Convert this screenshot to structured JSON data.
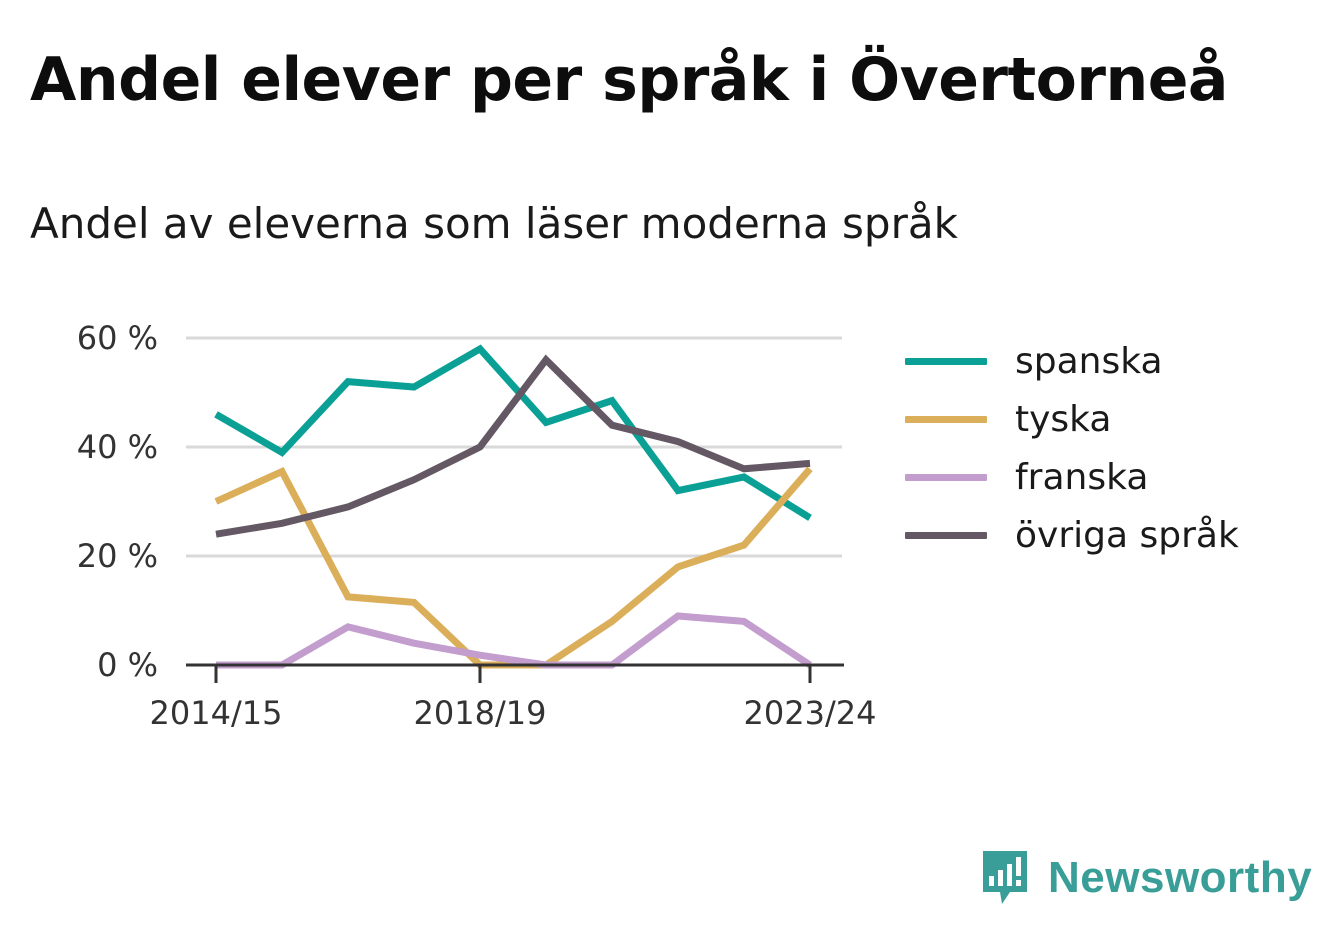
{
  "header": {
    "title": "Andel elever per språk i Övertorneå",
    "subtitle": "Andel av eleverna som läser moderna språk"
  },
  "brand": {
    "name": "Newsworthy",
    "color": "#3a9e98",
    "icon": "chart-bubble-icon"
  },
  "chart_data": {
    "type": "line",
    "x": [
      "2014/15",
      "2015/16",
      "2016/17",
      "2017/18",
      "2018/19",
      "2019/20",
      "2020/21",
      "2021/22",
      "2022/23",
      "2023/24"
    ],
    "x_tick_labels": [
      "2014/15",
      "",
      "",
      "",
      "2018/19",
      "",
      "",
      "",
      "",
      "2023/24"
    ],
    "y_ticks": [
      "0 %",
      "20 %",
      "40 %",
      "60 %"
    ],
    "ylim": [
      0,
      60
    ],
    "grid": true,
    "legend_position": "right",
    "series": [
      {
        "name": "spanska",
        "color": "#0aa096",
        "values": [
          46,
          39,
          52,
          51,
          58,
          44.5,
          48.5,
          32,
          34.5,
          27
        ]
      },
      {
        "name": "tyska",
        "color": "#dbae5a",
        "values": [
          30,
          35.5,
          12.5,
          11.5,
          0,
          0,
          8,
          18,
          22,
          36
        ]
      },
      {
        "name": "franska",
        "color": "#c29dcd",
        "values": [
          0,
          0,
          7,
          4,
          1.8,
          0,
          0,
          9,
          8,
          0
        ]
      },
      {
        "name": "övriga språk",
        "color": "#645864",
        "values": [
          24,
          26,
          29,
          34,
          40,
          56,
          44,
          41,
          36,
          37
        ]
      }
    ]
  }
}
